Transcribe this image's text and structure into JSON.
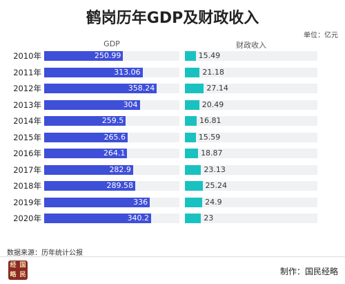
{
  "header": {
    "title": "鹤岗历年GDP及财政收入",
    "unit": "单位：亿元"
  },
  "columns": {
    "gdp": "GDP",
    "revenue": "财政收入"
  },
  "chart_data": {
    "type": "bar",
    "title": "鹤岗历年GDP及财政收入",
    "categories": [
      "2010年",
      "2011年",
      "2012年",
      "2013年",
      "2014年",
      "2015年",
      "2016年",
      "2017年",
      "2018年",
      "2019年",
      "2020年"
    ],
    "series": [
      {
        "name": "GDP",
        "values": [
          250.99,
          313.06,
          358.24,
          304,
          259.5,
          265.6,
          264.1,
          282.9,
          289.58,
          336,
          340.2
        ],
        "labels": [
          "250.99",
          "313.06",
          "358.24",
          "304",
          "259.5",
          "265.6",
          "264.1",
          "282.9",
          "289.58",
          "336",
          "340.2"
        ],
        "max": 430,
        "color": "#3e4fd8"
      },
      {
        "name": "财政收入",
        "values": [
          15.49,
          21.18,
          27.14,
          20.49,
          16.81,
          15.59,
          18.87,
          23.13,
          25.24,
          24.9,
          23
        ],
        "labels": [
          "15.49",
          "21.18",
          "27.14",
          "20.49",
          "16.81",
          "15.59",
          "18.87",
          "23.13",
          "25.24",
          "24.9",
          "23"
        ],
        "max": 190,
        "color": "#19c2c0"
      }
    ],
    "orientation": "horizontal"
  },
  "footer": {
    "source": "数据来源：历年统计公报",
    "producer": "制作：国民经略",
    "logo_chars": [
      "经",
      "国",
      "略",
      "民"
    ]
  }
}
